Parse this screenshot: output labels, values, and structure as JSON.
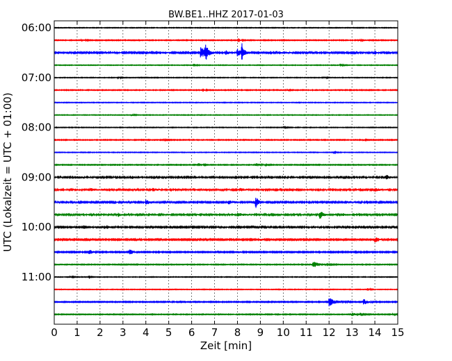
{
  "chart_data": {
    "type": "line",
    "title": "BW.BE1..HHZ 2017-01-03",
    "xlabel": "Zeit  [min]",
    "ylabel": "UTC (Lokalzeit = UTC + 01:00)",
    "xlim": [
      0,
      15
    ],
    "x_ticks": [
      0,
      1,
      2,
      3,
      4,
      5,
      6,
      7,
      8,
      9,
      10,
      11,
      12,
      13,
      14,
      15
    ],
    "y_tick_labels": [
      "06:00",
      "07:00",
      "08:00",
      "09:00",
      "10:00",
      "11:00"
    ],
    "rows_per_hour": 4,
    "row_minutes": 15,
    "grid": "vertical dotted",
    "row_colors": [
      "#000000",
      "#ff0000",
      "#0000ff",
      "#008000"
    ],
    "series": [
      {
        "start": "06:00",
        "events": [],
        "noise": 0.4
      },
      {
        "start": "06:15",
        "events": [
          [
            1.2,
            1.5,
            1.5
          ],
          [
            8.05,
            2.5,
            1.0
          ],
          [
            13.3,
            1.5,
            1.0
          ]
        ],
        "noise": 0.5
      },
      {
        "start": "06:30",
        "events": [
          [
            4.6,
            1.5,
            2.0
          ],
          [
            6.4,
            9.0,
            2.0
          ],
          [
            6.6,
            10.0,
            1.5
          ],
          [
            7.5,
            3.0,
            1.5
          ],
          [
            8.0,
            5.5,
            2.0
          ],
          [
            8.2,
            12.0,
            1.0
          ],
          [
            10.0,
            1.5,
            2.0
          ],
          [
            14.0,
            2.5,
            1.0
          ]
        ],
        "noise": 0.9
      },
      {
        "start": "06:45",
        "events": [
          [
            6.1,
            2.0,
            1.0
          ],
          [
            12.5,
            2.0,
            1.0
          ]
        ],
        "noise": 0.4
      },
      {
        "start": "07:00",
        "events": [
          [
            2.8,
            2.0,
            0.8
          ],
          [
            11.8,
            2.0,
            0.8
          ]
        ],
        "noise": 0.4
      },
      {
        "start": "07:15",
        "events": [
          [
            6.5,
            2.5,
            0.8
          ],
          [
            10.2,
            1.0,
            1.0
          ]
        ],
        "noise": 0.5
      },
      {
        "start": "07:30",
        "events": [],
        "noise": 0.4
      },
      {
        "start": "07:45",
        "events": [
          [
            3.4,
            1.5,
            1.0
          ]
        ],
        "noise": 0.4
      },
      {
        "start": "08:00",
        "events": [
          [
            10.0,
            1.0,
            1.0
          ]
        ],
        "noise": 0.4
      },
      {
        "start": "08:15",
        "events": [
          [
            4.8,
            1.0,
            1.0
          ],
          [
            13.5,
            1.0,
            1.0
          ]
        ],
        "noise": 0.5
      },
      {
        "start": "08:30",
        "events": [
          [
            12.2,
            1.0,
            1.0
          ]
        ],
        "noise": 0.4
      },
      {
        "start": "08:45",
        "events": [
          [
            6.3,
            2.0,
            1.5
          ],
          [
            8.8,
            2.5,
            2.5
          ]
        ],
        "noise": 0.5
      },
      {
        "start": "09:00",
        "events": [
          [
            1.0,
            1.2,
            3.0
          ],
          [
            3.4,
            1.5,
            1.5
          ],
          [
            6.1,
            2.0,
            1.5
          ],
          [
            10.4,
            1.5,
            1.5
          ],
          [
            14.5,
            3.0,
            1.5
          ]
        ],
        "noise": 1.0
      },
      {
        "start": "09:15",
        "events": [
          [
            1.5,
            2.0,
            3.0
          ],
          [
            4.3,
            2.5,
            1.5
          ],
          [
            8.1,
            2.0,
            2.0
          ],
          [
            14.0,
            2.5,
            2.0
          ]
        ],
        "noise": 1.0
      },
      {
        "start": "09:30",
        "events": [
          [
            4.0,
            3.5,
            2.0
          ],
          [
            7.6,
            2.5,
            3.0
          ],
          [
            8.8,
            8.0,
            1.5
          ],
          [
            12.7,
            1.5,
            2.0
          ]
        ],
        "noise": 0.9
      },
      {
        "start": "09:45",
        "events": [
          [
            2.8,
            2.5,
            1.0
          ],
          [
            8.0,
            2.0,
            3.0
          ],
          [
            11.6,
            6.5,
            1.5
          ],
          [
            12.6,
            1.5,
            2.0
          ]
        ],
        "noise": 1.0
      },
      {
        "start": "10:00",
        "events": [
          [
            1.3,
            2.0,
            2.5
          ],
          [
            2.3,
            2.0,
            1.0
          ],
          [
            11.3,
            2.0,
            1.0
          ]
        ],
        "noise": 0.9
      },
      {
        "start": "10:15",
        "events": [
          [
            9.0,
            1.2,
            2.0
          ],
          [
            14.0,
            4.0,
            2.0
          ]
        ],
        "noise": 0.8
      },
      {
        "start": "10:30",
        "events": [
          [
            1.5,
            4.0,
            2.0
          ],
          [
            3.3,
            4.0,
            1.5
          ],
          [
            8.1,
            1.5,
            0.8
          ]
        ],
        "noise": 0.7
      },
      {
        "start": "10:45",
        "events": [
          [
            11.3,
            4.5,
            3.5
          ]
        ],
        "noise": 0.5
      },
      {
        "start": "11:00",
        "events": [
          [
            0.7,
            1.0,
            1.5
          ],
          [
            1.5,
            1.0,
            1.0
          ]
        ],
        "noise": 0.4
      },
      {
        "start": "11:15",
        "events": [
          [
            13.7,
            2.0,
            1.0
          ]
        ],
        "noise": 0.4
      },
      {
        "start": "11:30",
        "events": [
          [
            5.0,
            2.0,
            0.8
          ],
          [
            12.0,
            6.0,
            3.5
          ],
          [
            13.5,
            4.5,
            2.0
          ]
        ],
        "noise": 0.6
      },
      {
        "start": "11:45",
        "events": [
          [
            13.0,
            2.0,
            3.0
          ],
          [
            14.8,
            1.5,
            1.0
          ]
        ],
        "noise": 0.5
      }
    ]
  }
}
